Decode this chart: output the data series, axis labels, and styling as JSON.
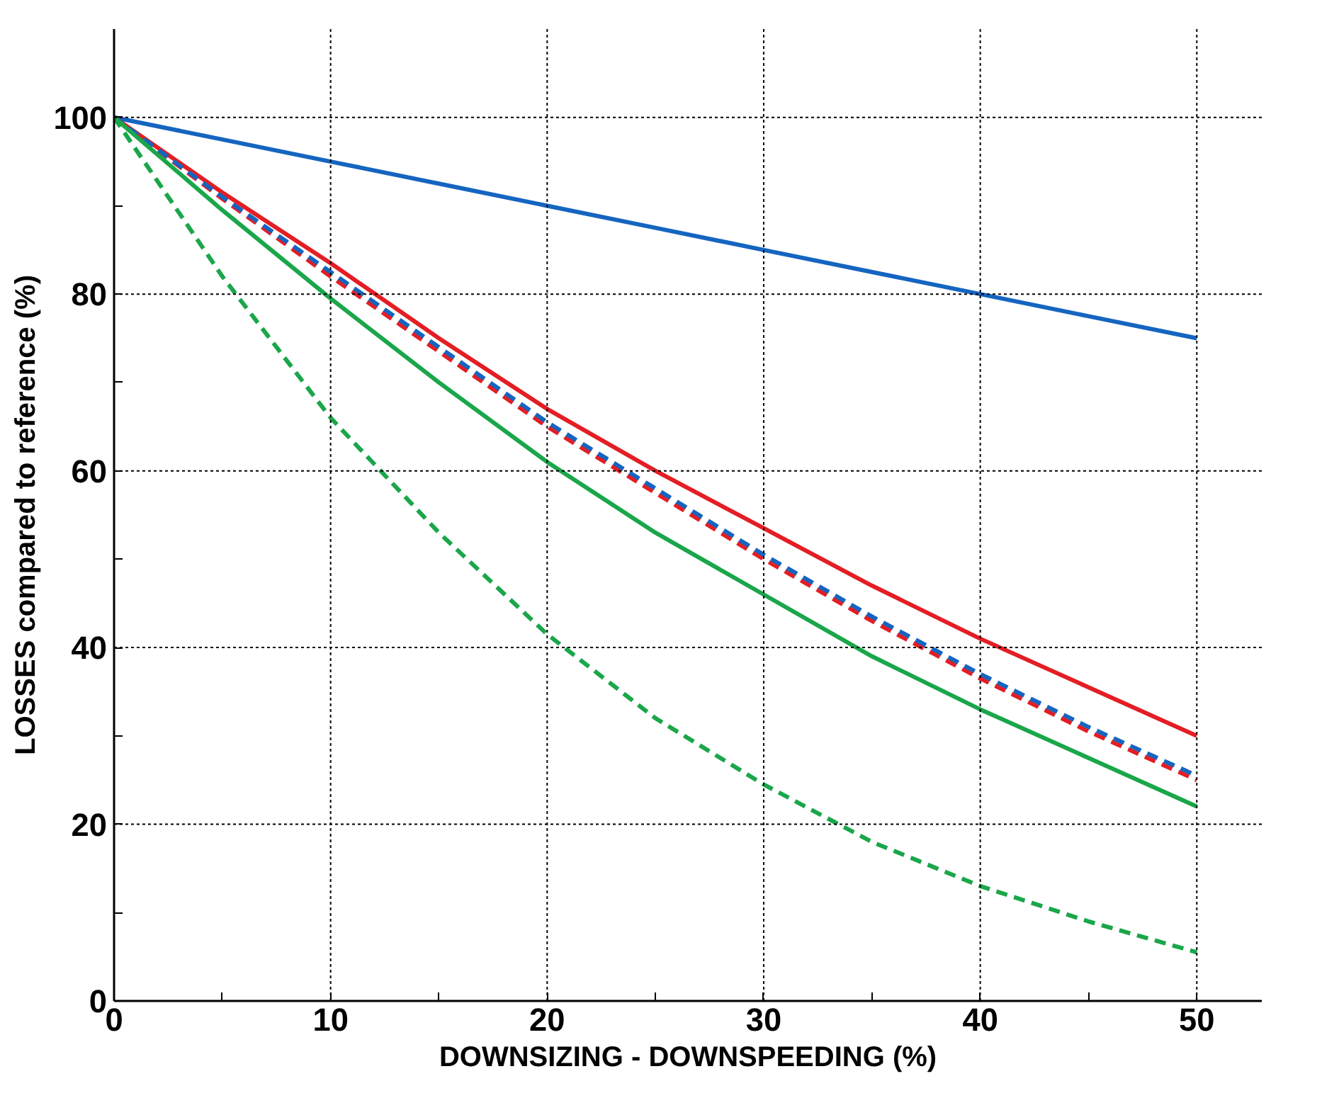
{
  "chart_data": {
    "type": "line",
    "ylabel": "LOSSES compared to reference (%)",
    "xlabel": "DOWNSIZING - DOWNSPEEDING (%)",
    "x": [
      0,
      5,
      10,
      15,
      20,
      25,
      30,
      35,
      40,
      45,
      50
    ],
    "series": [
      {
        "color": "#1565c0",
        "line_style": "solid",
        "values": [
          100,
          97.5,
          95,
          92.5,
          90,
          87.5,
          85,
          82.5,
          80,
          77.5,
          75
        ]
      },
      {
        "color": "#e31e24",
        "line_style": "solid",
        "values": [
          100,
          91.5,
          83.5,
          75,
          67,
          60,
          53.5,
          47,
          41,
          35.5,
          30
        ]
      },
      {
        "color": "#e31e24",
        "line_style": "dashed",
        "values": [
          100,
          90.8,
          82,
          73.5,
          65,
          57.5,
          50,
          43,
          36.5,
          30.5,
          25
        ]
      },
      {
        "color": "#1565c0",
        "line_style": "dashed",
        "values": [
          100,
          91,
          82.5,
          74,
          65.5,
          58,
          50.5,
          43.5,
          37,
          31,
          25.5
        ]
      },
      {
        "color": "#1aa64a",
        "line_style": "solid",
        "values": [
          100,
          89.5,
          79.5,
          70,
          61,
          53,
          46,
          39,
          33,
          27.5,
          22
        ]
      },
      {
        "color": "#1aa64a",
        "line_style": "dashed",
        "values": [
          100,
          82,
          66,
          53,
          41.5,
          32,
          24.5,
          18,
          13,
          9,
          5.5
        ]
      }
    ],
    "xlim": [
      0,
      53
    ],
    "ylim": [
      0,
      110
    ],
    "xticks": [
      0,
      {
        "value": 5,
        "label": null
      },
      10,
      {
        "value": 15,
        "label": null
      },
      20,
      {
        "value": 25,
        "label": null
      },
      30,
      {
        "value": 35,
        "label": null
      },
      40,
      {
        "value": 45,
        "label": null
      },
      50
    ],
    "yticks": [
      0,
      {
        "value": 10,
        "label": null
      },
      20,
      {
        "value": 30,
        "label": null
      },
      40,
      {
        "value": 50,
        "label": null
      },
      60,
      {
        "value": 70,
        "label": null
      },
      80,
      {
        "value": 90,
        "label": null
      },
      100
    ],
    "grid": true,
    "marker": "none"
  }
}
